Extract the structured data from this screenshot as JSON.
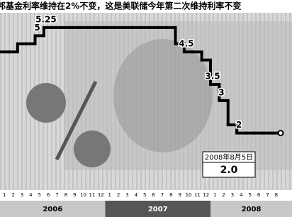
{
  "chart_data": {
    "type": "line",
    "title": "邦基金利率维持在2%不变，这是美联储今年第二次维持利率不变",
    "categories": [
      "1",
      "2",
      "3",
      "4",
      "5",
      "6",
      "7",
      "8",
      "9",
      "10",
      "11",
      "12",
      "1",
      "2",
      "3",
      "4",
      "5",
      "6",
      "7",
      "8",
      "9",
      "10",
      "11",
      "12",
      "1",
      "2",
      "3",
      "4",
      "5",
      "6",
      "7",
      "8"
    ],
    "years": [
      "2006",
      "2007",
      "2008"
    ],
    "series": [
      {
        "color": "#000000",
        "values": [
          4.5,
          4.5,
          4.75,
          4.75,
          5,
          5.25,
          5.25,
          5.25,
          5.25,
          5.25,
          5.25,
          5.25,
          5.25,
          5.25,
          5.25,
          5.25,
          5.25,
          5.25,
          5.25,
          5.25,
          4.75,
          4.5,
          4.5,
          4.25,
          3.5,
          3,
          2.25,
          2,
          2,
          2,
          2,
          2
        ],
        "value_labels": [
          null,
          null,
          null,
          null,
          "5",
          "5.25",
          null,
          null,
          null,
          null,
          null,
          null,
          null,
          null,
          null,
          null,
          null,
          null,
          null,
          null,
          null,
          "4.5",
          null,
          null,
          "3.5",
          "3",
          null,
          "2",
          null,
          null,
          null,
          null
        ]
      }
    ],
    "ylim": [
      0.2,
      6.1
    ],
    "annotation": {
      "date": "2008年8月5日",
      "value": "2.0"
    }
  }
}
